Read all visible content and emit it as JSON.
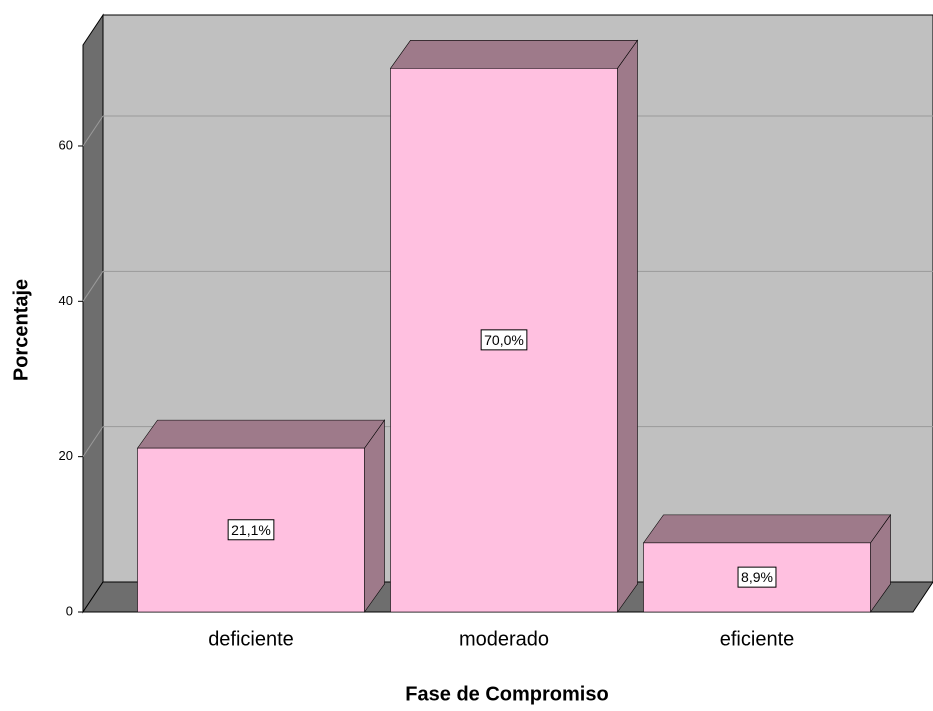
{
  "chart_data": {
    "type": "bar3d",
    "categories": [
      "deficiente",
      "moderado",
      "eficiente"
    ],
    "values": [
      21.1,
      70.0,
      8.9
    ],
    "value_labels": [
      "21,1%",
      "70,0%",
      "8,9%"
    ],
    "color": "#ffc0e0",
    "ylim": [
      0,
      73
    ],
    "yticks": [
      0,
      20,
      40,
      60
    ],
    "grid": true,
    "x_label": "Fase de Compromiso",
    "y_label": "Porcentaje"
  }
}
